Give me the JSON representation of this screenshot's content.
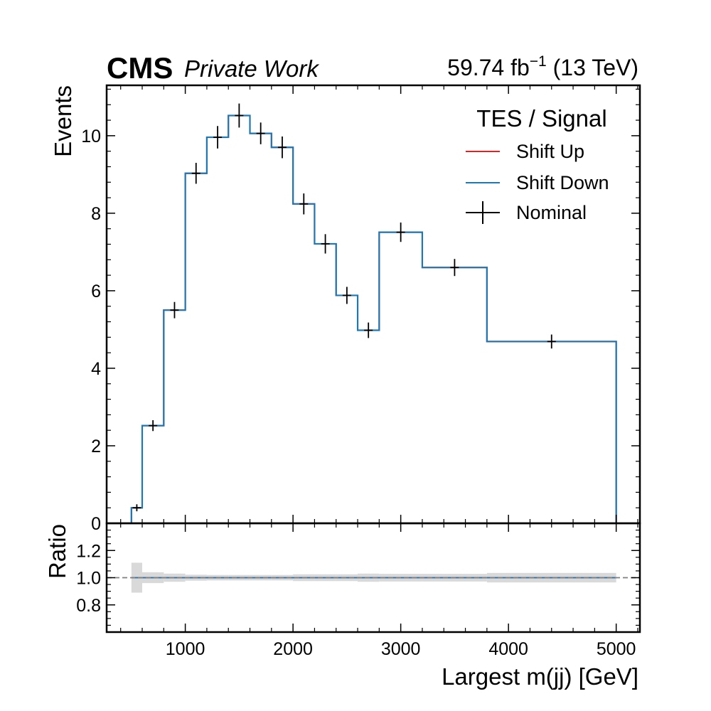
{
  "header": {
    "experiment": "CMS",
    "status": "Private Work",
    "lumi_value": "59.74 fb",
    "lumi_exp": "−1",
    "energy": " (13 TeV)"
  },
  "legend": {
    "title": "TES / Signal",
    "placement": "top-right",
    "entries": [
      "Shift Up",
      "Shift Down",
      "Nominal"
    ]
  },
  "colors": {
    "shift_up": "#d62728",
    "shift_down": "#1f77b4",
    "nominal": "#000000",
    "uncertainty_band": "#d9d9d9",
    "ratio_reference": "#808080"
  },
  "chart_data": [
    {
      "type": "histogram",
      "panel": "main",
      "xlabel": "Largest m(jj) [GeV]",
      "ylabel": "Events",
      "xlim": [
        270,
        5220
      ],
      "ylim": [
        0,
        11.3
      ],
      "x_ticks": [
        1000,
        2000,
        3000,
        4000,
        5000
      ],
      "x_tick_labels": [
        "1000",
        "2000",
        "3000",
        "4000",
        "5000"
      ],
      "y_ticks": [
        0,
        2,
        4,
        6,
        8,
        10
      ],
      "y_tick_labels": [
        "0",
        "2",
        "4",
        "6",
        "8",
        "10"
      ],
      "bin_edges": [
        500,
        600,
        800,
        1000,
        1200,
        1400,
        1600,
        1800,
        2000,
        2200,
        2400,
        2600,
        2800,
        3200,
        3800,
        5000
      ],
      "series": [
        {
          "name": "Shift Up",
          "style": "step",
          "values": [
            0.4,
            2.52,
            5.5,
            9.03,
            9.96,
            10.52,
            10.06,
            9.7,
            8.24,
            7.21,
            5.88,
            4.98,
            7.51,
            6.6,
            4.69
          ]
        },
        {
          "name": "Shift Down",
          "style": "step",
          "values": [
            0.4,
            2.52,
            5.5,
            9.03,
            9.96,
            10.52,
            10.06,
            9.7,
            8.24,
            7.21,
            5.88,
            4.98,
            7.51,
            6.6,
            4.69
          ]
        },
        {
          "name": "Nominal",
          "style": "errorbar",
          "values": [
            0.4,
            2.52,
            5.5,
            9.03,
            9.96,
            10.52,
            10.06,
            9.7,
            8.24,
            7.21,
            5.88,
            4.98,
            7.51,
            6.6,
            4.69
          ],
          "errors": [
            0.04,
            0.09,
            0.16,
            0.22,
            0.24,
            0.26,
            0.23,
            0.23,
            0.22,
            0.2,
            0.17,
            0.15,
            0.2,
            0.17,
            0.13
          ]
        }
      ]
    },
    {
      "type": "histogram",
      "panel": "ratio",
      "xlabel": "Largest m(jj) [GeV]",
      "ylabel": "Ratio",
      "xlim": [
        270,
        5220
      ],
      "ylim": [
        0.6,
        1.4
      ],
      "y_ticks": [
        0.8,
        1.0,
        1.2
      ],
      "y_tick_labels": [
        "0.8",
        "1.0",
        "1.2"
      ],
      "reference_line": 1.0,
      "bin_edges": [
        500,
        600,
        800,
        1000,
        1200,
        1400,
        1600,
        1800,
        2000,
        2200,
        2400,
        2600,
        2800,
        3200,
        3800,
        5000
      ],
      "series": [
        {
          "name": "Shift Up",
          "values": [
            1,
            1,
            1,
            1,
            1,
            1,
            1,
            1,
            1,
            1,
            1,
            1,
            1,
            1,
            1
          ]
        },
        {
          "name": "Shift Down",
          "values": [
            1,
            1,
            1,
            1,
            1,
            1,
            1,
            1,
            1,
            1,
            1,
            1,
            1,
            1,
            1
          ]
        }
      ],
      "uncertainty_band": {
        "lower": [
          0.89,
          0.96,
          0.97,
          0.978,
          0.98,
          0.98,
          0.98,
          0.98,
          0.975,
          0.975,
          0.975,
          0.97,
          0.972,
          0.972,
          0.965
        ],
        "upper": [
          1.11,
          1.04,
          1.03,
          1.022,
          1.02,
          1.02,
          1.02,
          1.02,
          1.025,
          1.025,
          1.025,
          1.03,
          1.028,
          1.028,
          1.035
        ]
      }
    }
  ]
}
